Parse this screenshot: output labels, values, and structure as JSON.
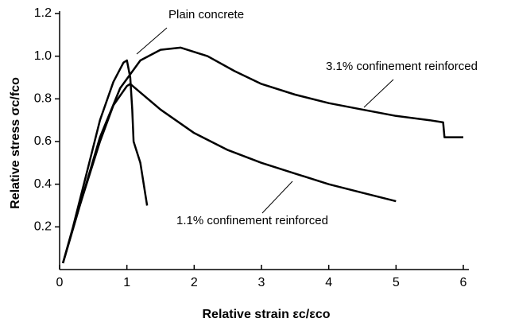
{
  "chart_data": {
    "type": "line",
    "xlabel": "Relative strain εc/εco",
    "ylabel": "Relative stress σc/fco",
    "xlim": [
      0,
      6
    ],
    "xticks": [
      0,
      1,
      2,
      3,
      4,
      5,
      6
    ],
    "ylim": [
      0,
      1.2
    ],
    "yticks": [
      0.2,
      0.4,
      0.6,
      0.8,
      {
        "value": 1,
        "label": "1.0"
      },
      1.2
    ],
    "annotations": [
      {
        "text": "Plain concrete"
      },
      {
        "text": "3.1% confinement reinforced"
      },
      {
        "text": "1.1% confinement reinforced"
      }
    ],
    "series": [
      {
        "name": "Plain concrete",
        "color": "#000000",
        "x": [
          0.05,
          0.2,
          0.4,
          0.6,
          0.8,
          0.95,
          1.0,
          1.05,
          1.08,
          1.1,
          1.2,
          1.3
        ],
        "values": [
          0.03,
          0.2,
          0.45,
          0.7,
          0.88,
          0.97,
          0.98,
          0.9,
          0.75,
          0.6,
          0.5,
          0.3
        ]
      },
      {
        "name": "1.1% confinement reinforced",
        "color": "#000000",
        "x": [
          0.05,
          0.3,
          0.6,
          0.8,
          1.0,
          1.05,
          1.2,
          1.5,
          2,
          2.5,
          3,
          3.5,
          4,
          4.5,
          5
        ],
        "values": [
          0.03,
          0.3,
          0.6,
          0.77,
          0.86,
          0.87,
          0.83,
          0.75,
          0.64,
          0.56,
          0.5,
          0.45,
          0.4,
          0.36,
          0.32
        ]
      },
      {
        "name": "3.1% confinement reinforced",
        "color": "#000000",
        "x": [
          0.05,
          0.3,
          0.6,
          0.9,
          1.2,
          1.5,
          1.8,
          2.2,
          2.6,
          3,
          3.5,
          4,
          4.5,
          5,
          5.5,
          5.7,
          5.72,
          6
        ],
        "values": [
          0.03,
          0.3,
          0.62,
          0.85,
          0.98,
          1.03,
          1.04,
          1.0,
          0.93,
          0.87,
          0.82,
          0.78,
          0.75,
          0.72,
          0.7,
          0.69,
          0.62,
          0.62
        ]
      }
    ]
  }
}
